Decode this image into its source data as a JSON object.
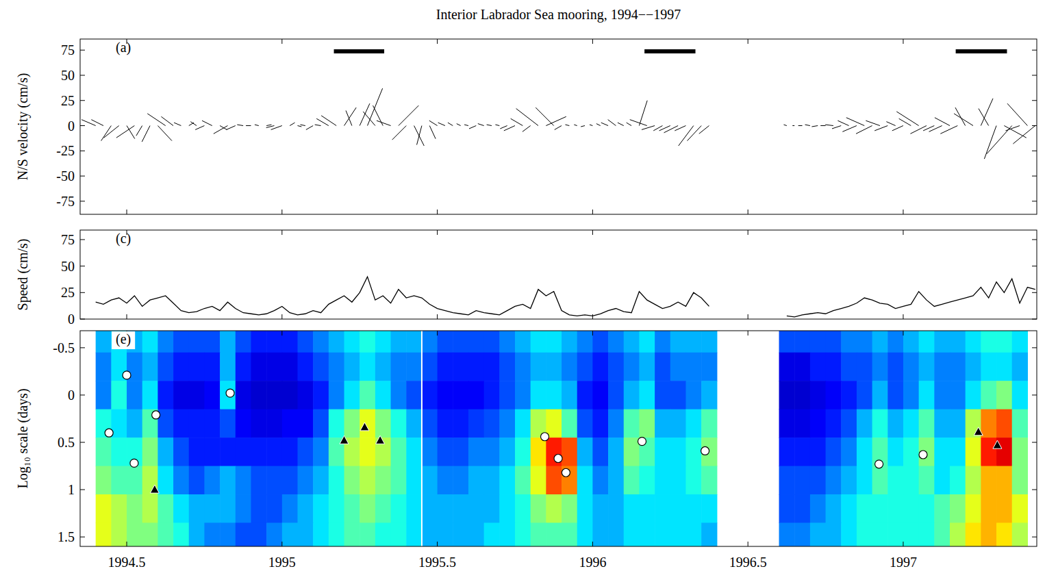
{
  "chart_data": [
    {
      "type": "stick",
      "title": "Interior Labrador Sea mooring, 1994−−1997",
      "panel": "(a)",
      "ylabel": "N/S velocity (cm/s)",
      "xlim": [
        1994.35,
        1997.43
      ],
      "ylim": [
        -88,
        86
      ],
      "xticks": [
        1994.5,
        1995,
        1995.5,
        1996,
        1996.5,
        1997
      ],
      "yticks": [
        -75,
        -50,
        -25,
        0,
        25,
        50,
        75
      ],
      "tick_labels": "y",
      "color": "#000000",
      "periods": [
        [
          1995.167,
          1995.329
        ],
        [
          1996.167,
          1996.331
        ],
        [
          1997.169,
          1997.334
        ]
      ],
      "x": [
        1994.4,
        1994.425,
        1994.45,
        1994.475,
        1994.5,
        1994.525,
        1994.55,
        1994.575,
        1994.6,
        1994.625,
        1994.65,
        1994.675,
        1994.7,
        1994.725,
        1994.75,
        1994.775,
        1994.8,
        1994.825,
        1994.85,
        1994.875,
        1994.9,
        1994.925,
        1994.95,
        1994.975,
        1995,
        1995.025,
        1995.05,
        1995.075,
        1995.1,
        1995.125,
        1995.15,
        1995.175,
        1995.2,
        1995.225,
        1995.25,
        1995.275,
        1995.3,
        1995.325,
        1995.35,
        1995.375,
        1995.4,
        1995.425,
        1995.45,
        1995.475,
        1995.5,
        1995.525,
        1995.55,
        1995.575,
        1995.6,
        1995.625,
        1995.65,
        1995.675,
        1995.7,
        1995.725,
        1995.75,
        1995.775,
        1995.8,
        1995.825,
        1995.85,
        1995.875,
        1995.9,
        1995.925,
        1995.95,
        1995.975,
        1996,
        1996.025,
        1996.05,
        1996.075,
        1996.1,
        1996.125,
        1996.15,
        1996.175,
        1996.2,
        1996.225,
        1996.25,
        1996.275,
        1996.3,
        1996.325,
        1996.35,
        1996.375,
        1996.5,
        1996.625,
        1996.65,
        1996.675,
        1996.7,
        1996.725,
        1996.75,
        1996.775,
        1996.8,
        1996.825,
        1996.85,
        1996.875,
        1996.9,
        1996.925,
        1996.95,
        1996.975,
        1997,
        1997.025,
        1997.05,
        1997.075,
        1997.1,
        1997.125,
        1997.15,
        1997.175,
        1997.2,
        1997.225,
        1997.25,
        1997.275,
        1997.3,
        1997.325,
        1997.35,
        1997.375,
        1997.4,
        1997.425
      ],
      "u": [
        -14,
        -12,
        -10,
        -15,
        8,
        -18,
        -6,
        -8,
        14,
        -18,
        -12,
        -7,
        5,
        -6,
        -9,
        -10,
        7,
        -14,
        -9,
        -6,
        -5,
        -4,
        5,
        -8,
        -11,
        5,
        4,
        -5,
        -7,
        -6,
        -12,
        -15,
        12,
        -6,
        10,
        15,
        -12,
        -10,
        -14,
        20,
        -14,
        10,
        -5,
        6,
        -8,
        -7,
        -5,
        -4,
        -4,
        -7,
        -6,
        -5,
        -4,
        -7,
        -11,
        -12,
        -8,
        -22,
        20,
        -18,
        -7,
        -4,
        -3,
        -4,
        -3,
        -4,
        -7,
        -8,
        -6,
        -5,
        8,
        -17,
        -13,
        -9,
        -11,
        -14,
        -11,
        -15,
        -14,
        -10,
        null,
        -3,
        -2,
        -4,
        -5,
        -6,
        -5,
        -8,
        -9,
        -11,
        -14,
        -18,
        -16,
        -14,
        -13,
        -9,
        -11,
        -12,
        -22,
        -16,
        -11,
        -13,
        -15,
        -17,
        -10,
        -19,
        12,
        -10,
        -12,
        22,
        -25,
        -14,
        -20,
        -22
      ],
      "v": [
        6,
        6,
        -15,
        -12,
        -13,
        -12,
        -10,
        -16,
        -15,
        12,
        9,
        3,
        3,
        4,
        -4,
        5,
        -4,
        -8,
        -4,
        1,
        0,
        1,
        1,
        -2,
        -4,
        3,
        -1,
        1,
        -4,
        1,
        7,
        10,
        18,
        15,
        22,
        37,
        14,
        20,
        5,
        20,
        -14,
        -20,
        -19,
        -13,
        5,
        3,
        3,
        2,
        1,
        -3,
        2,
        1,
        1,
        -3,
        -5,
        7,
        -6,
        17,
        9,
        18,
        -4,
        1,
        1,
        -1,
        1,
        2,
        3,
        6,
        3,
        3,
        25,
        6,
        -4,
        -5,
        -5,
        -7,
        -5,
        -20,
        -15,
        -8,
        null,
        1,
        0,
        0,
        1,
        -1,
        0,
        1,
        -3,
        5,
        -6,
        8,
        -8,
        5,
        -5,
        4,
        -5,
        7,
        14,
        -8,
        -5,
        -6,
        8,
        -8,
        18,
        12,
        27,
        17,
        -33,
        -12,
        -28,
        -5,
        22,
        -18
      ]
    },
    {
      "type": "line",
      "panel": "(c)",
      "ylabel": "Speed (cm/s)",
      "xlim": [
        1994.35,
        1997.43
      ],
      "ylim": [
        0,
        84
      ],
      "xticks": [
        1994.5,
        1995,
        1995.5,
        1996,
        1996.5,
        1997
      ],
      "yticks": [
        0,
        25,
        50,
        75
      ],
      "tick_labels": "y",
      "color": "#000000",
      "x": [
        1994.4,
        1994.425,
        1994.45,
        1994.475,
        1994.5,
        1994.525,
        1994.55,
        1994.575,
        1994.6,
        1994.625,
        1994.65,
        1994.675,
        1994.7,
        1994.725,
        1994.75,
        1994.775,
        1994.8,
        1994.825,
        1994.85,
        1994.875,
        1994.9,
        1994.925,
        1994.95,
        1994.975,
        1995,
        1995.025,
        1995.05,
        1995.075,
        1995.1,
        1995.125,
        1995.15,
        1995.175,
        1995.2,
        1995.225,
        1995.25,
        1995.275,
        1995.3,
        1995.325,
        1995.35,
        1995.375,
        1995.4,
        1995.425,
        1995.45,
        1995.475,
        1995.5,
        1995.525,
        1995.55,
        1995.575,
        1995.6,
        1995.625,
        1995.65,
        1995.675,
        1995.7,
        1995.725,
        1995.75,
        1995.775,
        1995.8,
        1995.825,
        1995.85,
        1995.875,
        1995.9,
        1995.925,
        1995.95,
        1995.975,
        1996,
        1996.025,
        1996.05,
        1996.075,
        1996.1,
        1996.125,
        1996.15,
        1996.175,
        1996.2,
        1996.225,
        1996.25,
        1996.275,
        1996.3,
        1996.325,
        1996.35,
        1996.375,
        1996.5,
        1996.625,
        1996.65,
        1996.675,
        1996.7,
        1996.725,
        1996.75,
        1996.775,
        1996.8,
        1996.825,
        1996.85,
        1996.875,
        1996.9,
        1996.925,
        1996.95,
        1996.975,
        1997,
        1997.025,
        1997.05,
        1997.075,
        1997.1,
        1997.125,
        1997.15,
        1997.175,
        1997.2,
        1997.225,
        1997.25,
        1997.275,
        1997.3,
        1997.325,
        1997.35,
        1997.375,
        1997.4,
        1997.425
      ],
      "values": [
        16,
        14,
        18,
        20,
        15,
        22,
        12,
        18,
        20,
        22,
        15,
        8,
        6,
        7,
        10,
        12,
        8,
        16,
        10,
        6,
        5,
        4,
        5,
        8,
        12,
        6,
        4,
        5,
        8,
        6,
        14,
        18,
        22,
        16,
        25,
        40,
        18,
        22,
        15,
        28,
        20,
        22,
        20,
        14,
        10,
        8,
        6,
        5,
        4,
        8,
        6,
        5,
        4,
        8,
        12,
        14,
        10,
        28,
        22,
        26,
        8,
        4,
        3,
        4,
        3,
        5,
        8,
        10,
        7,
        6,
        26,
        18,
        14,
        10,
        12,
        16,
        12,
        25,
        20,
        12,
        null,
        3,
        2,
        4,
        5,
        6,
        5,
        8,
        10,
        12,
        15,
        20,
        18,
        15,
        14,
        10,
        12,
        14,
        26,
        18,
        12,
        14,
        16,
        18,
        20,
        22,
        30,
        20,
        35,
        25,
        38,
        15,
        30,
        28
      ]
    },
    {
      "type": "heatmap",
      "panel": "(e)",
      "ylabel": "Log₁₀ scale (days)",
      "xlim": [
        1994.35,
        1997.43
      ],
      "ylim": [
        1.6,
        -0.68
      ],
      "xticks": [
        1994.5,
        1995,
        1995.5,
        1996,
        1996.5,
        1997
      ],
      "yticks": [
        -0.5,
        0,
        0.5,
        1,
        1.5
      ],
      "tick_labels": true,
      "zlim": [
        0,
        1
      ],
      "breaks": [
        1995.45
      ],
      "x": [
        1994.425,
        1994.475,
        1994.525,
        1994.575,
        1994.625,
        1994.675,
        1994.725,
        1994.775,
        1994.825,
        1994.875,
        1994.925,
        1994.975,
        1995.025,
        1995.075,
        1995.125,
        1995.175,
        1995.225,
        1995.275,
        1995.325,
        1995.375,
        1995.425,
        1995.475,
        1995.525,
        1995.575,
        1995.625,
        1995.675,
        1995.725,
        1995.775,
        1995.825,
        1995.875,
        1995.925,
        1995.975,
        1996.025,
        1996.075,
        1996.125,
        1996.175,
        1996.225,
        1996.275,
        1996.325,
        1996.375,
        1996.425,
        1996.475,
        1996.525,
        1996.575,
        1996.625,
        1996.675,
        1996.725,
        1996.775,
        1996.825,
        1996.875,
        1996.925,
        1996.975,
        1997.025,
        1997.075,
        1997.125,
        1997.175,
        1997.225,
        1997.275,
        1997.325,
        1997.375
      ],
      "y": [
        -0.6,
        -0.3,
        0,
        0.3,
        0.6,
        0.9,
        1.2,
        1.5
      ],
      "cells": [
        [
          0.3,
          0.35,
          0.3,
          0.35,
          0.25,
          0.2,
          0.2,
          0.2,
          0.3,
          0.2,
          0.15,
          0.15,
          0.15,
          0.2,
          0.25,
          0.3,
          0.35,
          0.4,
          0.35,
          0.3,
          0.3,
          0.25,
          0.2,
          0.2,
          0.2,
          0.2,
          0.25,
          0.3,
          0.35,
          0.35,
          0.3,
          0.25,
          0.2,
          0.25,
          0.3,
          0.35,
          0.25,
          0.3,
          0.3,
          0.3,
          null,
          null,
          null,
          null,
          0.2,
          0.2,
          0.2,
          0.2,
          0.25,
          0.25,
          0.3,
          0.25,
          0.3,
          0.35,
          0.3,
          0.3,
          0.35,
          0.4,
          0.4,
          0.35
        ],
        [
          0.25,
          0.35,
          0.25,
          0.3,
          0.2,
          0.15,
          0.15,
          0.15,
          0.3,
          0.15,
          0.1,
          0.1,
          0.1,
          0.15,
          0.2,
          0.25,
          0.3,
          0.35,
          0.3,
          0.25,
          0.25,
          0.2,
          0.15,
          0.15,
          0.15,
          0.15,
          0.2,
          0.25,
          0.3,
          0.3,
          0.25,
          0.2,
          0.15,
          0.2,
          0.25,
          0.3,
          0.2,
          0.25,
          0.25,
          0.25,
          null,
          null,
          null,
          null,
          0.1,
          0.1,
          0.15,
          0.15,
          0.2,
          0.2,
          0.25,
          0.2,
          0.25,
          0.3,
          0.25,
          0.25,
          0.3,
          0.35,
          0.35,
          0.3
        ],
        [
          0.25,
          0.4,
          0.25,
          0.35,
          0.15,
          0.1,
          0.1,
          0.12,
          0.35,
          0.1,
          0.08,
          0.08,
          0.08,
          0.1,
          0.15,
          0.25,
          0.35,
          0.45,
          0.35,
          0.25,
          0.2,
          0.15,
          0.12,
          0.12,
          0.12,
          0.15,
          0.2,
          0.25,
          0.35,
          0.35,
          0.3,
          0.15,
          0.12,
          0.2,
          0.3,
          0.35,
          0.2,
          0.2,
          0.25,
          0.3,
          null,
          null,
          null,
          null,
          0.08,
          0.08,
          0.1,
          0.12,
          0.15,
          0.2,
          0.3,
          0.2,
          0.25,
          0.35,
          0.25,
          0.25,
          0.35,
          0.45,
          0.5,
          0.35
        ],
        [
          0.4,
          0.35,
          0.3,
          0.45,
          0.2,
          0.15,
          0.15,
          0.15,
          0.2,
          0.12,
          0.1,
          0.1,
          0.12,
          0.12,
          0.2,
          0.4,
          0.5,
          0.6,
          0.5,
          0.4,
          0.3,
          0.2,
          0.15,
          0.15,
          0.18,
          0.2,
          0.25,
          0.35,
          0.55,
          0.6,
          0.45,
          0.2,
          0.15,
          0.25,
          0.45,
          0.5,
          0.3,
          0.3,
          0.35,
          0.45,
          null,
          null,
          null,
          null,
          0.1,
          0.1,
          0.12,
          0.15,
          0.2,
          0.3,
          0.4,
          0.3,
          0.35,
          0.45,
          0.3,
          0.3,
          0.55,
          0.75,
          0.8,
          0.45
        ],
        [
          0.45,
          0.4,
          0.4,
          0.5,
          0.3,
          0.2,
          0.15,
          0.15,
          0.15,
          0.15,
          0.15,
          0.15,
          0.15,
          0.2,
          0.25,
          0.45,
          0.55,
          0.6,
          0.55,
          0.45,
          0.35,
          0.25,
          0.2,
          0.2,
          0.25,
          0.25,
          0.3,
          0.4,
          0.65,
          0.85,
          0.8,
          0.3,
          0.2,
          0.3,
          0.5,
          0.45,
          0.35,
          0.35,
          0.4,
          0.5,
          null,
          null,
          null,
          null,
          0.15,
          0.15,
          0.15,
          0.2,
          0.25,
          0.35,
          0.45,
          0.35,
          0.4,
          0.5,
          0.35,
          0.35,
          0.6,
          0.85,
          0.9,
          0.5
        ],
        [
          0.5,
          0.45,
          0.45,
          0.55,
          0.35,
          0.25,
          0.2,
          0.25,
          0.3,
          0.25,
          0.2,
          0.2,
          0.2,
          0.25,
          0.3,
          0.4,
          0.5,
          0.55,
          0.5,
          0.45,
          0.35,
          0.3,
          0.25,
          0.25,
          0.3,
          0.3,
          0.35,
          0.45,
          0.6,
          0.8,
          0.75,
          0.35,
          0.25,
          0.3,
          0.45,
          0.4,
          0.35,
          0.35,
          0.4,
          0.45,
          null,
          null,
          null,
          null,
          0.2,
          0.2,
          0.2,
          0.25,
          0.3,
          0.35,
          0.45,
          0.4,
          0.4,
          0.45,
          0.35,
          0.4,
          0.55,
          0.7,
          0.7,
          0.5
        ],
        [
          0.6,
          0.55,
          0.5,
          0.55,
          0.45,
          0.35,
          0.3,
          0.3,
          0.3,
          0.25,
          0.2,
          0.2,
          0.25,
          0.3,
          0.35,
          0.4,
          0.45,
          0.5,
          0.45,
          0.4,
          0.35,
          0.3,
          0.3,
          0.3,
          0.3,
          0.3,
          0.35,
          0.4,
          0.5,
          0.55,
          0.5,
          0.35,
          0.3,
          0.3,
          0.35,
          0.35,
          0.35,
          0.35,
          0.35,
          0.35,
          null,
          null,
          null,
          null,
          0.2,
          0.2,
          0.25,
          0.3,
          0.35,
          0.4,
          0.4,
          0.4,
          0.4,
          0.4,
          0.45,
          0.5,
          0.6,
          0.7,
          0.7,
          0.6
        ],
        [
          0.6,
          0.55,
          0.5,
          0.5,
          0.45,
          0.4,
          0.3,
          0.25,
          0.25,
          0.2,
          0.2,
          0.25,
          0.3,
          0.3,
          0.35,
          0.4,
          0.45,
          0.45,
          0.4,
          0.4,
          0.35,
          0.3,
          0.3,
          0.3,
          0.3,
          0.35,
          0.35,
          0.4,
          0.45,
          0.45,
          0.45,
          0.35,
          0.3,
          0.3,
          0.35,
          0.35,
          0.35,
          0.35,
          0.35,
          0.3,
          null,
          null,
          null,
          null,
          0.25,
          0.25,
          0.3,
          0.3,
          0.35,
          0.4,
          0.4,
          0.4,
          0.4,
          0.4,
          0.45,
          0.55,
          0.65,
          0.7,
          0.65,
          0.55
        ]
      ],
      "series": [
        {
          "marker": "circle",
          "x": [
            1994.443,
            1994.5,
            1994.524,
            1994.594,
            1994.833,
            1995.846,
            1995.889,
            1995.914,
            1996.159,
            1996.362,
            1996.922,
            1997.064
          ],
          "values": [
            0.4,
            -0.21,
            0.72,
            0.21,
            -0.02,
            0.44,
            0.67,
            0.82,
            0.49,
            0.59,
            0.73,
            0.63
          ]
        },
        {
          "marker": "triangle",
          "x": [
            1994.59,
            1995.2,
            1995.266,
            1995.316,
            1997.242,
            1997.303
          ],
          "values": [
            1.0,
            0.48,
            0.34,
            0.48,
            0.39,
            0.53
          ]
        }
      ]
    }
  ]
}
